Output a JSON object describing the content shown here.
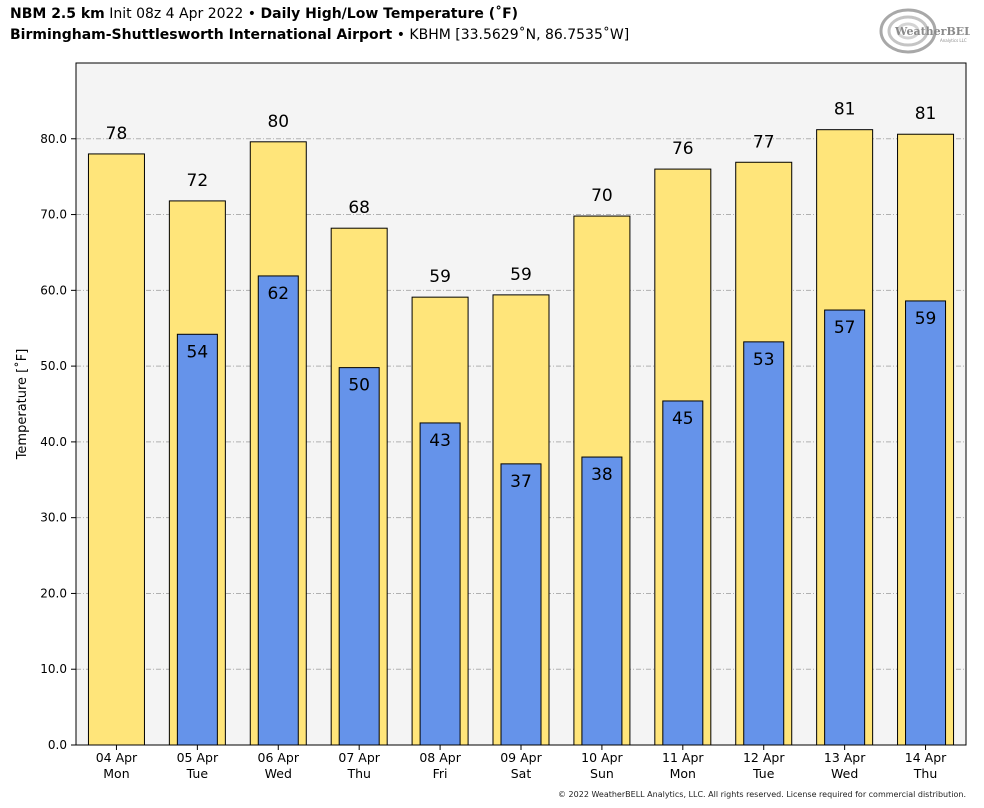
{
  "header": {
    "model": "NBM 2.5 km",
    "init": "Init 08z 4 Apr 2022",
    "bullet": "•",
    "product": "Daily High/Low Temperature (˚F)",
    "location": "Birmingham-Shuttlesworth International Airport",
    "station": "KBHM [33.5629˚N, 86.7535˚W]"
  },
  "logo": {
    "name": "WeatherBELL",
    "sub": "Analytics LLC",
    "color": "#9e9e9e"
  },
  "copyright": "© 2022 WeatherBELL Analytics, LLC. All rights reserved. License required for commercial distribution.",
  "colors": {
    "high": "#ffe57a",
    "low": "#6593ea",
    "plot_bg": "#f4f4f4"
  },
  "chart_data": {
    "type": "bar",
    "ylabel": "Temperature [˚F]",
    "ylim": [
      0,
      90
    ],
    "yticks": [
      "0.0",
      "10.0",
      "20.0",
      "30.0",
      "40.0",
      "50.0",
      "60.0",
      "70.0",
      "80.0"
    ],
    "ytick_values": [
      0,
      10,
      20,
      30,
      40,
      50,
      60,
      70,
      80
    ],
    "grid": true,
    "categories": [
      [
        "04 Apr",
        "Mon"
      ],
      [
        "05 Apr",
        "Tue"
      ],
      [
        "06 Apr",
        "Wed"
      ],
      [
        "07 Apr",
        "Thu"
      ],
      [
        "08 Apr",
        "Fri"
      ],
      [
        "09 Apr",
        "Sat"
      ],
      [
        "10 Apr",
        "Sun"
      ],
      [
        "11 Apr",
        "Mon"
      ],
      [
        "12 Apr",
        "Tue"
      ],
      [
        "13 Apr",
        "Wed"
      ],
      [
        "14 Apr",
        "Thu"
      ]
    ],
    "series": [
      {
        "values": [
          78,
          71.8,
          79.6,
          68.2,
          59.1,
          59.4,
          69.8,
          76,
          76.9,
          81.2,
          80.6
        ],
        "labels": [
          "78",
          "72",
          "80",
          "68",
          "59",
          "59",
          "70",
          "76",
          "77",
          "81",
          "81"
        ]
      },
      {
        "values": [
          null,
          54.2,
          61.9,
          49.8,
          42.5,
          37.1,
          38,
          45.4,
          53.2,
          57.4,
          58.6
        ],
        "labels": [
          "",
          "54",
          "62",
          "50",
          "43",
          "37",
          "38",
          "45",
          "53",
          "57",
          "59"
        ]
      }
    ]
  }
}
